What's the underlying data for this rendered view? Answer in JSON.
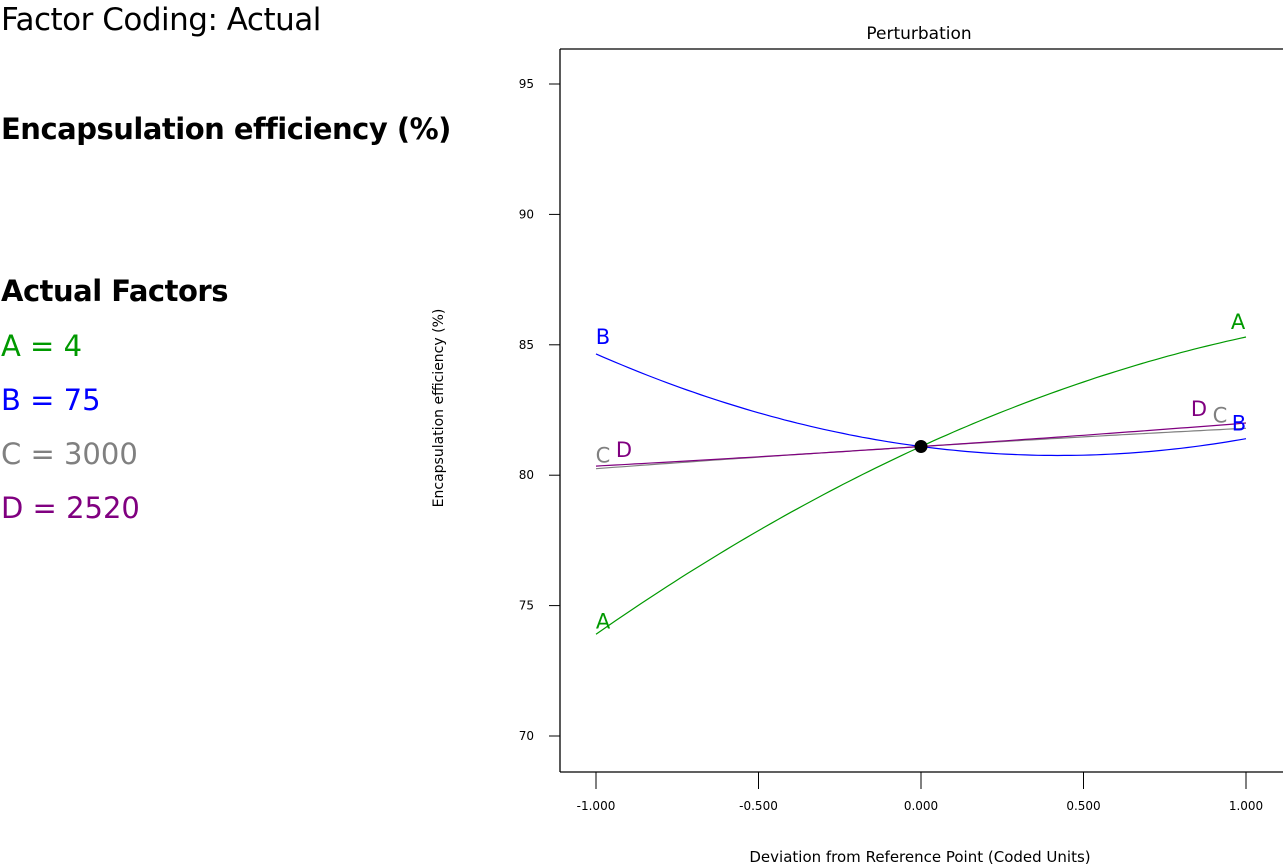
{
  "header": {
    "factor_coding": "Factor Coding: Actual",
    "response_name": "Encapsulation efficiency (%)"
  },
  "actual_factors": {
    "title": "Actual Factors",
    "items": [
      {
        "label": "A = 4",
        "letter": "A",
        "value": "4",
        "color": "#009900"
      },
      {
        "label": "B = 75",
        "letter": "B",
        "value": "75",
        "color": "#0000ff"
      },
      {
        "label": "C = 3000",
        "letter": "C",
        "value": "3000",
        "color": "#808080"
      },
      {
        "label": "D = 2520",
        "letter": "D",
        "value": "2520",
        "color": "#800080"
      }
    ]
  },
  "chart_data": {
    "type": "line",
    "title": "Perturbation",
    "xlabel": "Deviation from Reference Point (Coded Units)",
    "ylabel": "Encapsulation efficiency (%)",
    "xlim": [
      -1.0,
      1.0
    ],
    "ylim": [
      68.6,
      96.4
    ],
    "xticks": [
      -1.0,
      -0.5,
      0.0,
      0.5,
      1.0
    ],
    "xtick_labels": [
      "-1.000",
      "-0.500",
      "0.000",
      "0.500",
      "1.000"
    ],
    "yticks": [
      70,
      75,
      80,
      85,
      90,
      95
    ],
    "ytick_labels": [
      "70",
      "75",
      "80",
      "85",
      "90",
      "95"
    ],
    "grid": false,
    "reference_point": {
      "x": 0.0,
      "y": 81.1
    },
    "series": [
      {
        "name": "A",
        "color": "#009900",
        "x": [
          -1.0,
          -0.5,
          0.0,
          0.5,
          1.0
        ],
        "values": [
          73.9,
          77.9,
          81.1,
          83.6,
          85.3
        ]
      },
      {
        "name": "B",
        "color": "#0000ff",
        "x": [
          -1.0,
          -0.5,
          0.0,
          0.5,
          1.0
        ],
        "values": [
          84.65,
          82.4,
          81.1,
          80.8,
          81.4
        ]
      },
      {
        "name": "C",
        "color": "#808080",
        "x": [
          -1.0,
          -0.5,
          0.0,
          0.5,
          1.0
        ],
        "values": [
          80.25,
          80.7,
          81.1,
          81.45,
          81.8
        ]
      },
      {
        "name": "D",
        "color": "#800080",
        "x": [
          -1.0,
          -0.5,
          0.0,
          0.5,
          1.0
        ],
        "values": [
          80.35,
          80.75,
          81.1,
          81.55,
          82.0
        ]
      }
    ],
    "curve_labels": [
      {
        "series": "A",
        "end": "left",
        "text": "A"
      },
      {
        "series": "A",
        "end": "right",
        "text": "A"
      },
      {
        "series": "B",
        "end": "left",
        "text": "B"
      },
      {
        "series": "B",
        "end": "right",
        "text": "B"
      },
      {
        "series": "C",
        "end": "left",
        "text": "C"
      },
      {
        "series": "C",
        "end": "right",
        "text": "C"
      },
      {
        "series": "D",
        "end": "left",
        "text": "D"
      },
      {
        "series": "D",
        "end": "right",
        "text": "D"
      }
    ]
  }
}
